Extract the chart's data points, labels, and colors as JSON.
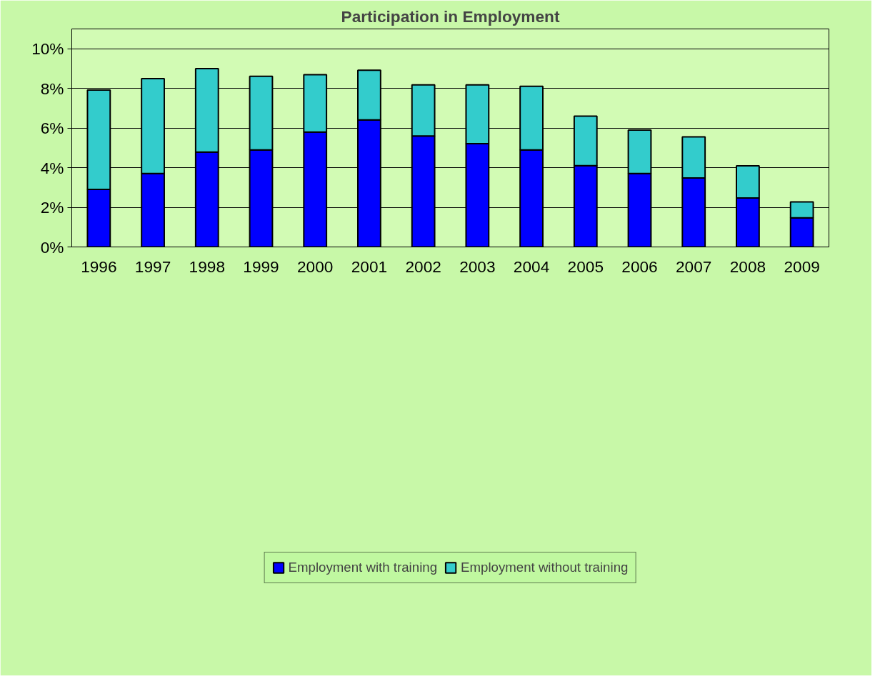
{
  "chart_data": {
    "type": "bar",
    "title": "Participation in Employment",
    "stacked": true,
    "categories": [
      "1996",
      "1997",
      "1998",
      "1999",
      "2000",
      "2001",
      "2002",
      "2003",
      "2004",
      "2005",
      "2006",
      "2007",
      "2008",
      "2009"
    ],
    "series": [
      {
        "name": "Employment with training",
        "color": "#0000ff",
        "values": [
          2.9,
          3.71,
          4.79,
          4.9,
          5.8,
          6.41,
          5.6,
          5.21,
          4.9,
          4.1,
          3.71,
          3.48,
          2.47,
          1.47
        ]
      },
      {
        "name": "Employment without training",
        "color": "#33cccc",
        "values": [
          5.02,
          4.78,
          4.21,
          3.71,
          2.89,
          2.51,
          2.58,
          2.97,
          3.21,
          2.5,
          2.19,
          2.07,
          1.62,
          0.8
        ]
      }
    ],
    "ylim": [
      0,
      11
    ],
    "yticks": [
      {
        "value": 0,
        "label": "0%"
      },
      {
        "value": 2,
        "label": "2%"
      },
      {
        "value": 4,
        "label": "4%"
      },
      {
        "value": 6,
        "label": "6%"
      },
      {
        "value": 8,
        "label": "8%"
      },
      {
        "value": 10,
        "label": "10%"
      }
    ],
    "grid": "y",
    "legend": "bottom"
  }
}
